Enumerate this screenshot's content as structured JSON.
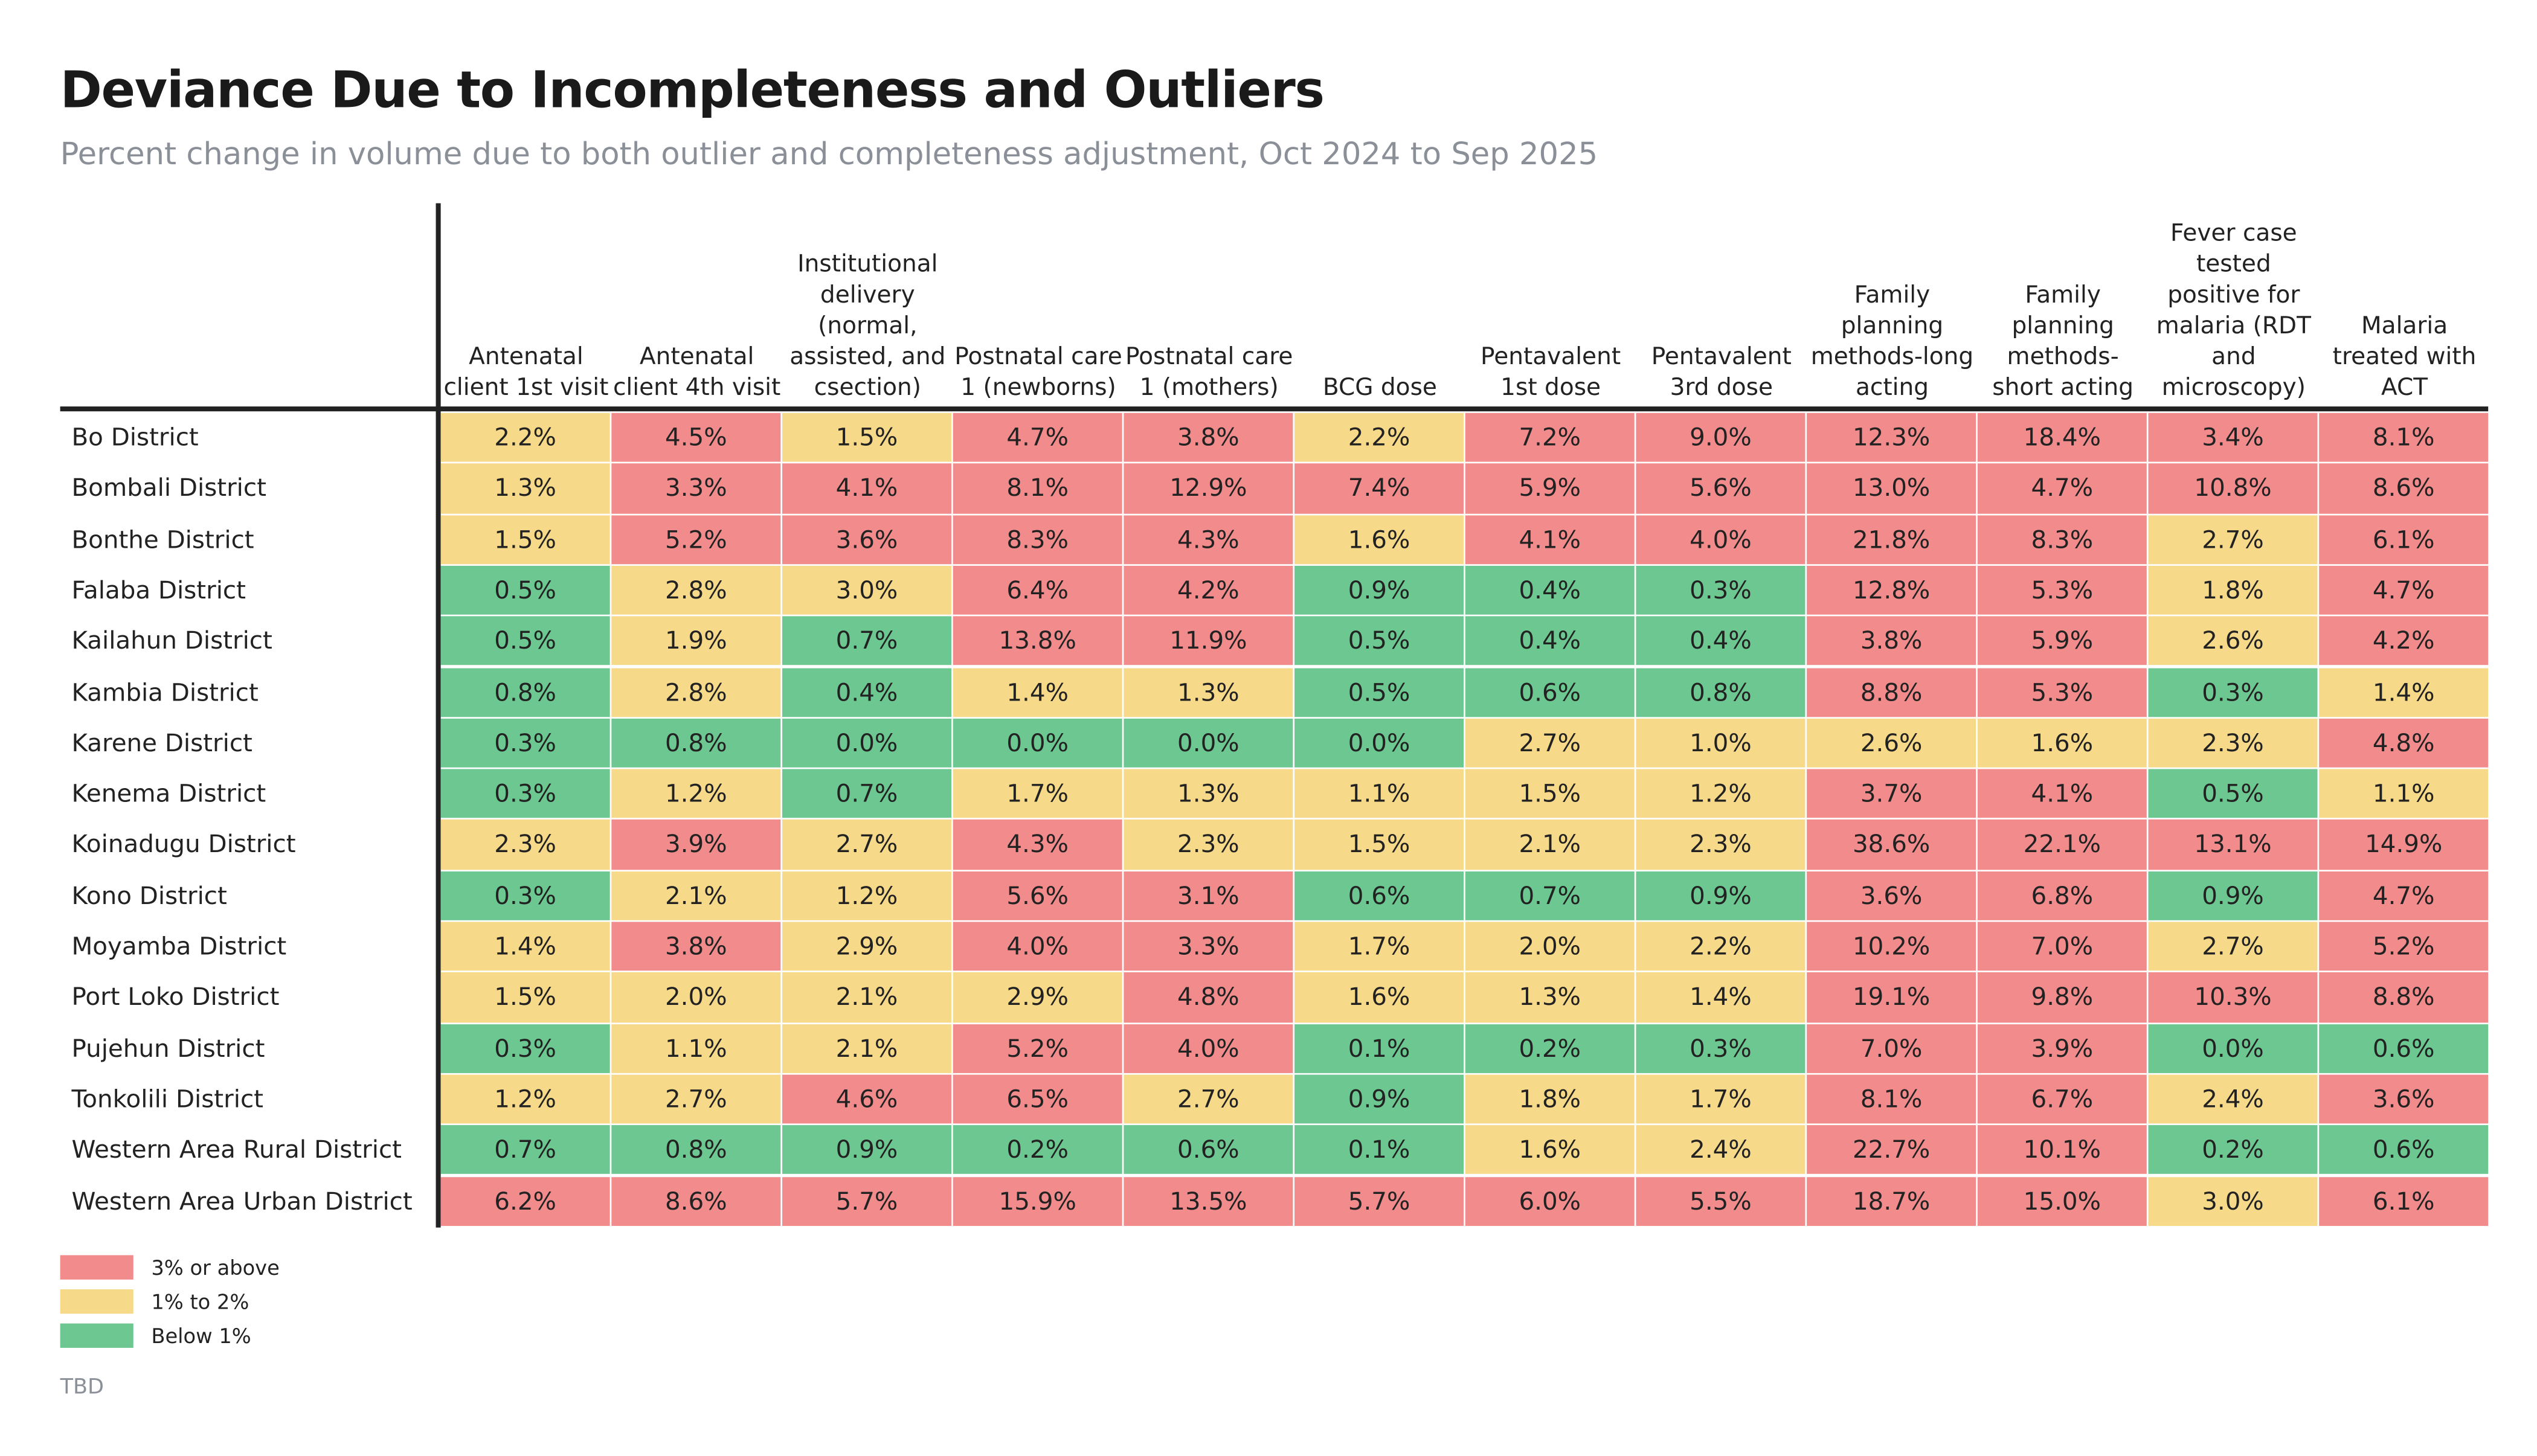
{
  "header": {
    "title": "Deviance Due to Incompleteness and Outliers",
    "subtitle": "Percent change in volume due to both outlier and completeness adjustment, Oct 2024 to Sep 2025"
  },
  "table": {
    "columns": [
      "Antenatal client 1st visit",
      "Antenatal client 4th visit",
      "Institutional delivery (normal, assisted, and csection)",
      "Postnatal care 1 (newborns)",
      "Postnatal care 1 (mothers)",
      "BCG dose",
      "Pentavalent 1st dose",
      "Pentavalent 3rd dose",
      "Family planning methods-long acting",
      "Family planning methods-short acting",
      "Fever case tested positive for malaria (RDT and microscopy)",
      "Malaria treated with ACT"
    ],
    "row_labels": [
      "Bo District",
      "Bombali District",
      "Bonthe District",
      "Falaba District",
      "Kailahun District",
      "Kambia District",
      "Karene District",
      "Kenema District",
      "Koinadugu District",
      "Kono District",
      "Moyamba District",
      "Port Loko District",
      "Pujehun District",
      "Tonkolili District",
      "Western Area Rural District",
      "Western Area Urban District"
    ],
    "rows": [
      [
        "2.2%",
        "4.5%",
        "1.5%",
        "4.7%",
        "3.8%",
        "2.2%",
        "7.2%",
        "9.0%",
        "12.3%",
        "18.4%",
        "3.4%",
        "8.1%"
      ],
      [
        "1.3%",
        "3.3%",
        "4.1%",
        "8.1%",
        "12.9%",
        "7.4%",
        "5.9%",
        "5.6%",
        "13.0%",
        "4.7%",
        "10.8%",
        "8.6%"
      ],
      [
        "1.5%",
        "5.2%",
        "3.6%",
        "8.3%",
        "4.3%",
        "1.6%",
        "4.1%",
        "4.0%",
        "21.8%",
        "8.3%",
        "2.7%",
        "6.1%"
      ],
      [
        "0.5%",
        "2.8%",
        "3.0%",
        "6.4%",
        "4.2%",
        "0.9%",
        "0.4%",
        "0.3%",
        "12.8%",
        "5.3%",
        "1.8%",
        "4.7%"
      ],
      [
        "0.5%",
        "1.9%",
        "0.7%",
        "13.8%",
        "11.9%",
        "0.5%",
        "0.4%",
        "0.4%",
        "3.8%",
        "5.9%",
        "2.6%",
        "4.2%"
      ],
      [
        "0.8%",
        "2.8%",
        "0.4%",
        "1.4%",
        "1.3%",
        "0.5%",
        "0.6%",
        "0.8%",
        "8.8%",
        "5.3%",
        "0.3%",
        "1.4%"
      ],
      [
        "0.3%",
        "0.8%",
        "0.0%",
        "0.0%",
        "0.0%",
        "0.0%",
        "2.7%",
        "1.0%",
        "2.6%",
        "1.6%",
        "2.3%",
        "4.8%"
      ],
      [
        "0.3%",
        "1.2%",
        "0.7%",
        "1.7%",
        "1.3%",
        "1.1%",
        "1.5%",
        "1.2%",
        "3.7%",
        "4.1%",
        "0.5%",
        "1.1%"
      ],
      [
        "2.3%",
        "3.9%",
        "2.7%",
        "4.3%",
        "2.3%",
        "1.5%",
        "2.1%",
        "2.3%",
        "38.6%",
        "22.1%",
        "13.1%",
        "14.9%"
      ],
      [
        "0.3%",
        "2.1%",
        "1.2%",
        "5.6%",
        "3.1%",
        "0.6%",
        "0.7%",
        "0.9%",
        "3.6%",
        "6.8%",
        "0.9%",
        "4.7%"
      ],
      [
        "1.4%",
        "3.8%",
        "2.9%",
        "4.0%",
        "3.3%",
        "1.7%",
        "2.0%",
        "2.2%",
        "10.2%",
        "7.0%",
        "2.7%",
        "5.2%"
      ],
      [
        "1.5%",
        "2.0%",
        "2.1%",
        "2.9%",
        "4.8%",
        "1.6%",
        "1.3%",
        "1.4%",
        "19.1%",
        "9.8%",
        "10.3%",
        "8.8%"
      ],
      [
        "0.3%",
        "1.1%",
        "2.1%",
        "5.2%",
        "4.0%",
        "0.1%",
        "0.2%",
        "0.3%",
        "7.0%",
        "3.9%",
        "0.0%",
        "0.6%"
      ],
      [
        "1.2%",
        "2.7%",
        "4.6%",
        "6.5%",
        "2.7%",
        "0.9%",
        "1.8%",
        "1.7%",
        "8.1%",
        "6.7%",
        "2.4%",
        "3.6%"
      ],
      [
        "0.7%",
        "0.8%",
        "0.9%",
        "0.2%",
        "0.6%",
        "0.1%",
        "1.6%",
        "2.4%",
        "22.7%",
        "10.1%",
        "0.2%",
        "0.6%"
      ],
      [
        "6.2%",
        "8.6%",
        "5.7%",
        "15.9%",
        "13.5%",
        "5.7%",
        "6.0%",
        "5.5%",
        "18.7%",
        "15.0%",
        "3.0%",
        "6.1%"
      ]
    ]
  },
  "legend": [
    {
      "label": "3% or above",
      "color": "#f28b8b"
    },
    {
      "label": "1% to 2%",
      "color": "#f7d98a"
    },
    {
      "label": "Below 1%",
      "color": "#6cc790"
    }
  ],
  "footer": "TBD"
}
